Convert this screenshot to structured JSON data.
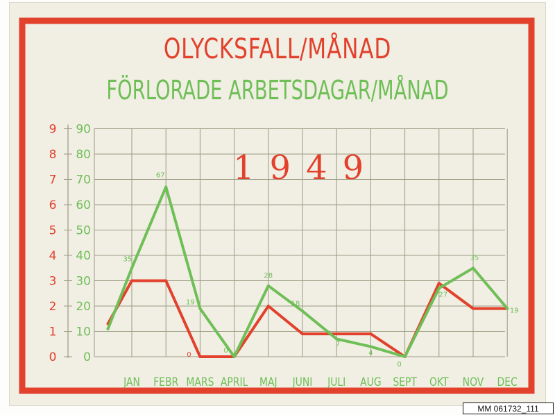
{
  "title": "OLYCKSFALL/MÅNAD",
  "subtitle": "FÖRLORADE ARBETSDAGAR/MÅNAD",
  "year": "1949",
  "catalog_id": "MM 061732_111",
  "colors": {
    "accidents": "#e2412c",
    "lost_days": "#6fbf57",
    "grid": "#9a9a82",
    "board": "#f1eee4"
  },
  "chart_data": {
    "type": "line",
    "title": "OLYCKSFALL/MÅNAD",
    "subtitle": "FÖRLORADE ARBETSDAGAR/MÅNAD",
    "categories": [
      "JAN",
      "FEBR",
      "MARS",
      "APRIL",
      "MAJ",
      "JUNI",
      "JULI",
      "AUG",
      "SEPT",
      "OKT",
      "NOV",
      "DEC"
    ],
    "left_axis": {
      "ticks": [
        "0",
        "1",
        "2",
        "3",
        "4",
        "5",
        "6",
        "7",
        "8",
        "9"
      ],
      "ylim": [
        0,
        9
      ],
      "color": "#e2412c"
    },
    "right_axis": {
      "ticks": [
        "0",
        "10",
        "20",
        "30",
        "40",
        "50",
        "60",
        "70",
        "80",
        "90"
      ],
      "ylim": [
        0,
        90
      ],
      "color": "#6fbf57"
    },
    "grid": true,
    "series": [
      {
        "axis": "left",
        "color": "#e2412c",
        "x": [
          -0.7,
          0,
          1,
          2,
          3,
          4,
          5,
          6,
          7,
          8,
          9,
          10,
          11
        ],
        "values": [
          1.3,
          3,
          3,
          0,
          0,
          2,
          0.9,
          0.9,
          0.9,
          0,
          2.9,
          1.9,
          1.9
        ]
      },
      {
        "axis": "right",
        "color": "#6fbf57",
        "x": [
          -0.7,
          0,
          1,
          2,
          3,
          4,
          5,
          6,
          7,
          8,
          9,
          10,
          11
        ],
        "values": [
          11,
          35,
          67,
          19,
          0,
          28,
          18,
          7,
          4,
          0,
          27,
          35,
          19
        ]
      }
    ],
    "data_labels": [
      {
        "text": "35",
        "series": 1,
        "index": 1
      },
      {
        "text": "67",
        "series": 1,
        "index": 2
      },
      {
        "text": "19",
        "series": 1,
        "index": 3
      },
      {
        "text": "0",
        "series": 1,
        "index": 4
      },
      {
        "text": "28",
        "series": 1,
        "index": 5
      },
      {
        "text": "18",
        "series": 1,
        "index": 6
      },
      {
        "text": "7",
        "series": 1,
        "index": 7
      },
      {
        "text": "4",
        "series": 1,
        "index": 8
      },
      {
        "text": "0",
        "series": 1,
        "index": 9
      },
      {
        "text": "27",
        "series": 1,
        "index": 10
      },
      {
        "text": "35",
        "series": 1,
        "index": 11
      },
      {
        "text": "19",
        "series": 1,
        "index": 12
      },
      {
        "text": "0",
        "series": 0,
        "index": 3
      }
    ]
  }
}
